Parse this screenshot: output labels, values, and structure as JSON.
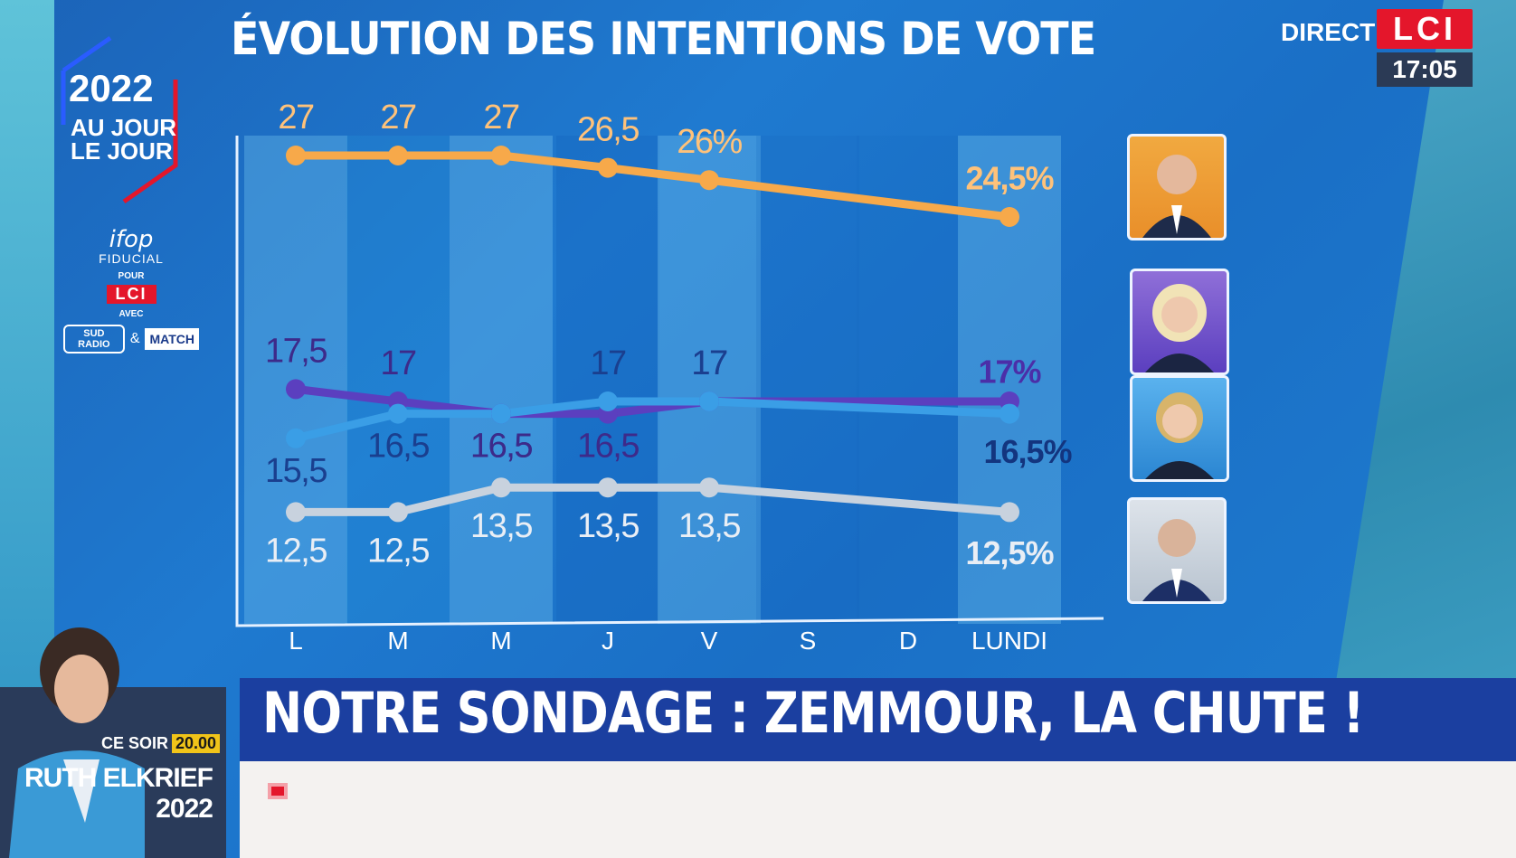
{
  "header": {
    "title": "ÉVOLUTION DES INTENTIONS DE VOTE",
    "live_label": "DIRECT",
    "channel": "LCI",
    "clock": "17:05"
  },
  "logo": {
    "year": "2022",
    "line1": "AU JOUR",
    "line2": "LE JOUR"
  },
  "sponsors": {
    "pollster": "ifop",
    "partner": "FIDUCIAL",
    "pour": "POUR",
    "channel": "LCI",
    "avec": "AVEC",
    "radio": "SUD RADIO",
    "amp": "&",
    "magazine": "MATCH"
  },
  "chart_data": {
    "type": "line",
    "categories": [
      "L",
      "M",
      "M",
      "J",
      "V",
      "S",
      "D",
      "LUNDI"
    ],
    "series": [
      {
        "color": "#f7a94a",
        "values": [
          27,
          27,
          27,
          26.5,
          26,
          null,
          null,
          24.5
        ],
        "labels": [
          "27",
          "27",
          "27",
          "26,5",
          "26%",
          "",
          "",
          "24,5%"
        ]
      },
      {
        "color": "#5b3fbf",
        "values": [
          17.5,
          17,
          16.5,
          16.5,
          17,
          null,
          null,
          17
        ],
        "labels": [
          "17,5",
          "17",
          "",
          "16,5",
          "17",
          "",
          "",
          "17%"
        ]
      },
      {
        "color": "#3a9ee6",
        "values": [
          15.5,
          16.5,
          16.5,
          17,
          17,
          null,
          null,
          16.5
        ],
        "labels": [
          "15,5",
          "16,5",
          "16,5",
          "17",
          "17",
          "",
          "",
          "16,5%"
        ]
      },
      {
        "color": "#c8d2de",
        "values": [
          12.5,
          12.5,
          13.5,
          13.5,
          13.5,
          null,
          null,
          12.5
        ],
        "labels": [
          "12,5",
          "12,5",
          "13,5",
          "13,5",
          "13,5",
          "",
          "",
          "12,5%"
        ]
      }
    ],
    "extra_labels": [
      "16,5"
    ],
    "grid": false
  },
  "candidates": [
    "portrait-1",
    "portrait-2",
    "portrait-3",
    "portrait-4"
  ],
  "banner": {
    "headline": "NOTRE SONDAGE : ZEMMOUR, LA CHUTE !"
  },
  "host": {
    "tonight": "CE SOIR",
    "time": "20.00",
    "name_line1": "RUTH ELKRIEF",
    "name_line2": "2022"
  },
  "colors": {
    "background": "#1a6fc6",
    "macron": "#f7a94a",
    "lepen": "#5b3fbf",
    "pecresse": "#3a9ee6",
    "zemmour": "#c8d2de",
    "lci_red": "#e4162b",
    "banner": "#1b3fa0"
  }
}
